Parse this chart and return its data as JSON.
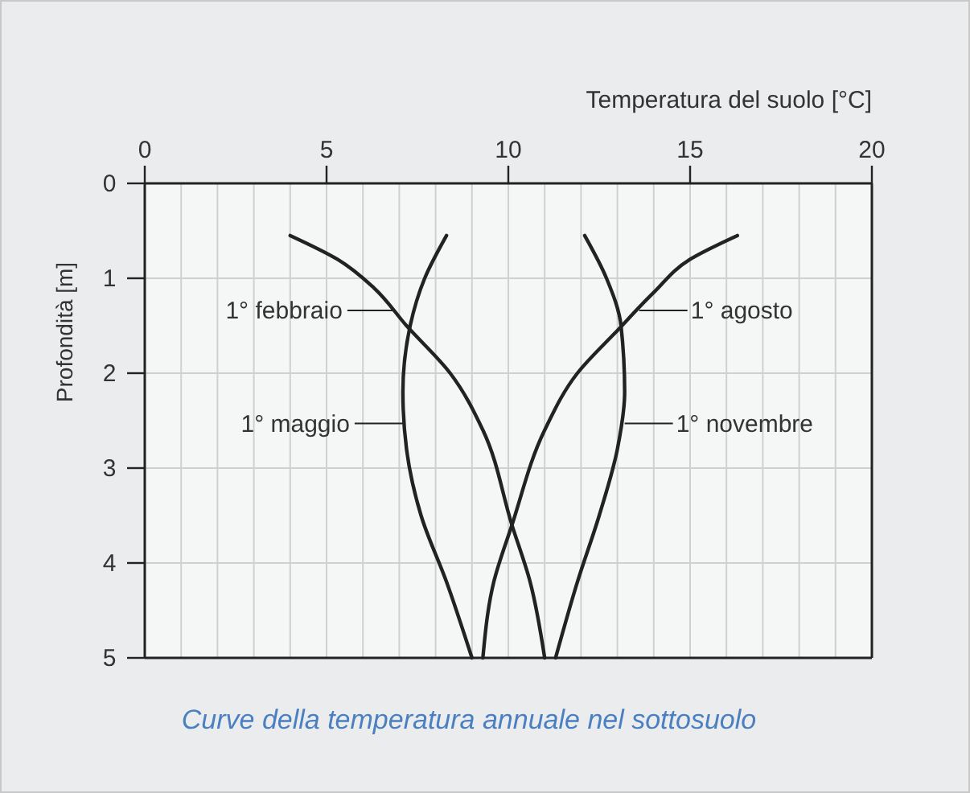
{
  "chart_data": {
    "type": "line",
    "title": "Curve della temperatura annuale nel sottosuolo",
    "xlabel": "Temperatura del suolo [°C]",
    "ylabel": "Profondità [m]",
    "xlim": [
      0,
      20
    ],
    "ylim": [
      5,
      0
    ],
    "xticks": [
      0,
      {
        "value": 1,
        "label": null
      },
      {
        "value": 2,
        "label": null
      },
      {
        "value": 3,
        "label": null
      },
      {
        "value": 4,
        "label": null
      },
      5,
      {
        "value": 6,
        "label": null
      },
      {
        "value": 7,
        "label": null
      },
      {
        "value": 8,
        "label": null
      },
      {
        "value": 9,
        "label": null
      },
      10,
      {
        "value": 11,
        "label": null
      },
      {
        "value": 12,
        "label": null
      },
      {
        "value": 13,
        "label": null
      },
      {
        "value": 14,
        "label": null
      },
      15,
      {
        "value": 16,
        "label": null
      },
      {
        "value": 17,
        "label": null
      },
      {
        "value": 18,
        "label": null
      },
      {
        "value": 19,
        "label": null
      },
      20
    ],
    "yticks": [
      0,
      1,
      2,
      3,
      4,
      5
    ],
    "grid": true,
    "line_style": "solid",
    "series": [
      {
        "color": "#222222",
        "x": [
          4.0,
          5.3,
          6.3,
          7.2,
          8.4,
          9.3,
          10.1,
          10.6,
          11.0
        ],
        "values": [
          0.55,
          0.8,
          1.1,
          1.5,
          2.0,
          2.6,
          3.6,
          4.2,
          5
        ]
      },
      {
        "color": "#222222",
        "x": [
          16.3,
          15.0,
          14.0,
          13.0,
          11.9,
          11.0,
          10.1,
          9.6,
          9.3
        ],
        "values": [
          0.55,
          0.8,
          1.15,
          1.55,
          2.0,
          2.6,
          3.6,
          4.2,
          5
        ]
      },
      {
        "color": "#222222",
        "x": [
          8.3,
          7.7,
          7.3,
          7.1,
          7.2,
          7.6,
          8.3,
          9.0
        ],
        "values": [
          0.55,
          1.0,
          1.5,
          2.2,
          2.8,
          3.5,
          4.2,
          5
        ]
      },
      {
        "color": "#222222",
        "x": [
          12.1,
          12.7,
          13.1,
          13.2,
          13.0,
          12.5,
          11.9,
          11.3
        ],
        "values": [
          0.55,
          1.0,
          1.5,
          2.2,
          2.8,
          3.5,
          4.2,
          5
        ]
      }
    ],
    "annotations": [
      {
        "text": "1° febbraio",
        "x": 6.9,
        "y": 1.34
      },
      {
        "text": "1° agosto",
        "x": 13.6,
        "y": 1.34
      },
      {
        "text": "1° maggio",
        "x": 7.1,
        "y": 2.53
      },
      {
        "text": "1° novembre",
        "x": 13.2,
        "y": 2.53
      }
    ]
  }
}
